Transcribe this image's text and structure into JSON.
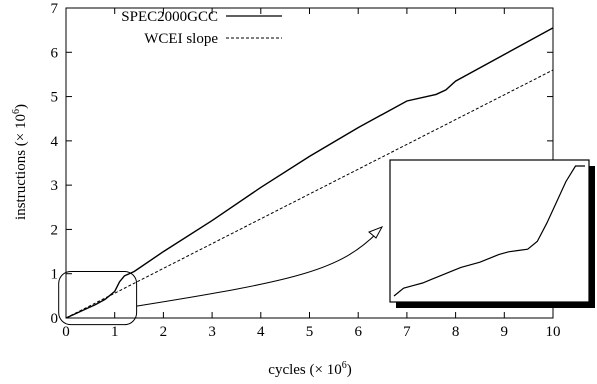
{
  "chart_data": {
    "type": "line",
    "title": "",
    "xlabel": {
      "text": "cycles (× 10",
      "exp": "6",
      "suffix": ")"
    },
    "ylabel": {
      "text": "instructions (× 10",
      "exp": "6",
      "suffix": ")"
    },
    "xlim": [
      0,
      10
    ],
    "ylim": [
      0,
      7
    ],
    "x_ticks": [
      "0",
      "1",
      "2",
      "3",
      "4",
      "5",
      "6",
      "7",
      "8",
      "9",
      "10"
    ],
    "y_ticks": [
      "0",
      "1",
      "2",
      "3",
      "4",
      "5",
      "6",
      "7"
    ],
    "grid": false,
    "legend": "top-left",
    "series": [
      {
        "name": "SPEC2000GCC",
        "style": "solid",
        "color": "#000000",
        "x": [
          0,
          0.2,
          0.4,
          0.6,
          0.8,
          1.0,
          1.1,
          1.2,
          1.4,
          2,
          3,
          4,
          5,
          6,
          7,
          7.6,
          7.8,
          8,
          9,
          10
        ],
        "y": [
          0,
          0.1,
          0.2,
          0.3,
          0.42,
          0.6,
          0.82,
          0.95,
          1.05,
          1.5,
          2.2,
          2.95,
          3.65,
          4.3,
          4.9,
          5.05,
          5.15,
          5.35,
          5.95,
          6.55
        ]
      },
      {
        "name": "WCEI slope",
        "style": "dashed",
        "color": "#000000",
        "x": [
          0,
          10
        ],
        "y": [
          0,
          5.6
        ]
      }
    ],
    "annotation": {
      "type": "zoom-inset",
      "source_region": {
        "x": [
          -0.15,
          1.45
        ],
        "y": [
          -0.15,
          1.05
        ]
      },
      "curve": {
        "x": [
          0,
          0.05,
          0.1,
          0.15,
          0.2,
          0.25,
          0.3,
          0.35,
          0.4,
          0.45,
          0.5,
          0.55,
          0.6,
          0.65,
          0.7,
          0.75,
          0.8,
          0.85,
          0.9,
          0.95,
          1.0
        ],
        "y": [
          0,
          0.06,
          0.08,
          0.1,
          0.13,
          0.16,
          0.19,
          0.22,
          0.24,
          0.26,
          0.29,
          0.32,
          0.34,
          0.35,
          0.36,
          0.42,
          0.56,
          0.72,
          0.88,
          1.0,
          1.0
        ]
      }
    }
  }
}
